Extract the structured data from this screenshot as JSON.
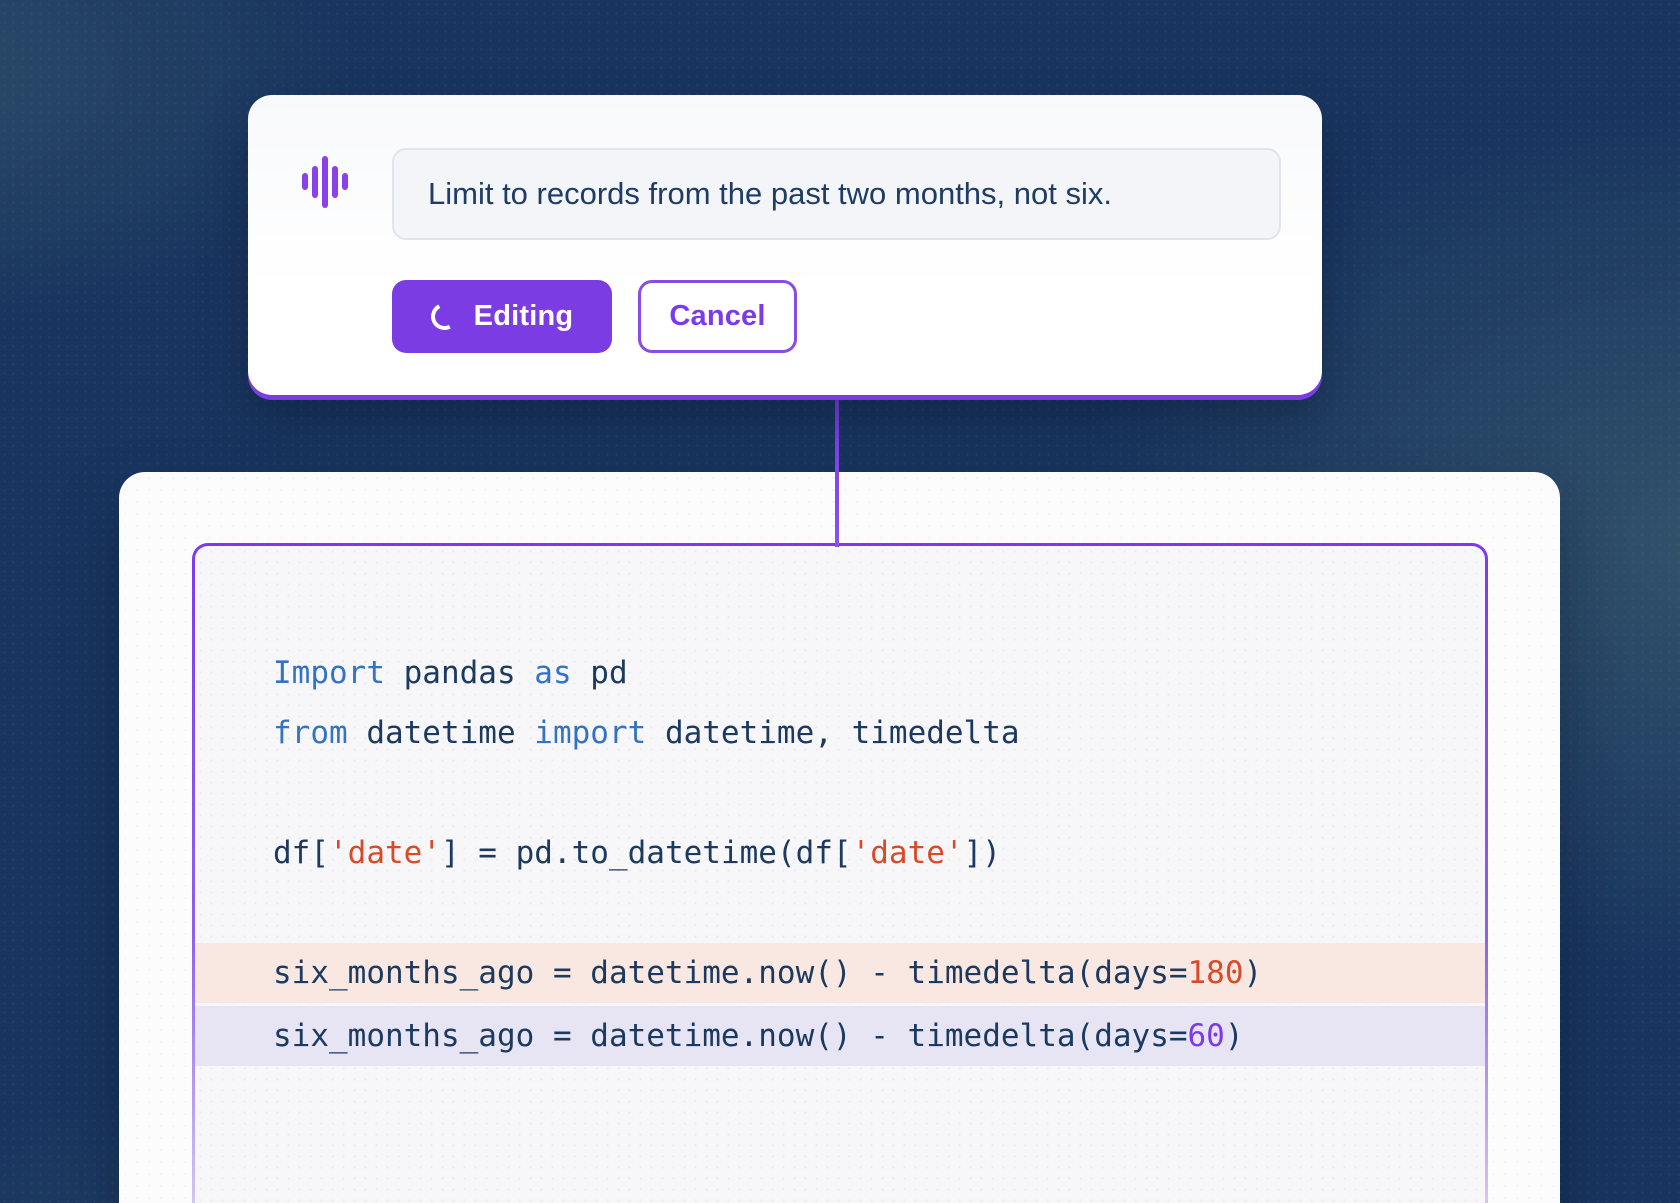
{
  "colors": {
    "background_navy": "#19355F",
    "accent_purple": "#7B3DE3",
    "keyword_blue": "#3273C3",
    "code_navy": "#1C3A60",
    "string_orange": "#D94A28",
    "added_number_purple": "#7C3AED",
    "removed_line_bg": "#F9E8E1",
    "added_line_bg": "#E7E4F4"
  },
  "voice_card": {
    "icon": "waveform-icon",
    "input": {
      "value": "Limit to records from the past two months, not six."
    },
    "editing_button": {
      "label": "Editing",
      "icon": "spinner-icon"
    },
    "cancel_button": {
      "label": "Cancel"
    }
  },
  "code_card": {
    "language": "python",
    "lines": [
      {
        "kind": "code",
        "segments": [
          {
            "t": "Import",
            "c": "k"
          },
          {
            "t": " pandas ",
            "c": "d"
          },
          {
            "t": "as",
            "c": "k"
          },
          {
            "t": " pd",
            "c": "d"
          }
        ]
      },
      {
        "kind": "code",
        "segments": [
          {
            "t": "from",
            "c": "k"
          },
          {
            "t": " datetime ",
            "c": "d"
          },
          {
            "t": "import",
            "c": "k"
          },
          {
            "t": " datetime, timedelta",
            "c": "d"
          }
        ]
      },
      {
        "kind": "blank",
        "segments": []
      },
      {
        "kind": "code",
        "segments": [
          {
            "t": "df[",
            "c": "d"
          },
          {
            "t": "'date'",
            "c": "s"
          },
          {
            "t": "] = pd.to_datetime(df[",
            "c": "d"
          },
          {
            "t": "'date'",
            "c": "s"
          },
          {
            "t": "])",
            "c": "d"
          }
        ]
      },
      {
        "kind": "blank",
        "segments": []
      },
      {
        "kind": "removed",
        "segments": [
          {
            "t": "six_months_ago = datetime.now() - timedelta(days=",
            "c": "d"
          },
          {
            "t": "180",
            "c": "s"
          },
          {
            "t": ")",
            "c": "d"
          }
        ]
      },
      {
        "kind": "added",
        "segments": [
          {
            "t": "six_months_ago = datetime.now() - timedelta(days=",
            "c": "d"
          },
          {
            "t": "60",
            "c": "p"
          },
          {
            "t": ")",
            "c": "d"
          }
        ]
      }
    ]
  }
}
